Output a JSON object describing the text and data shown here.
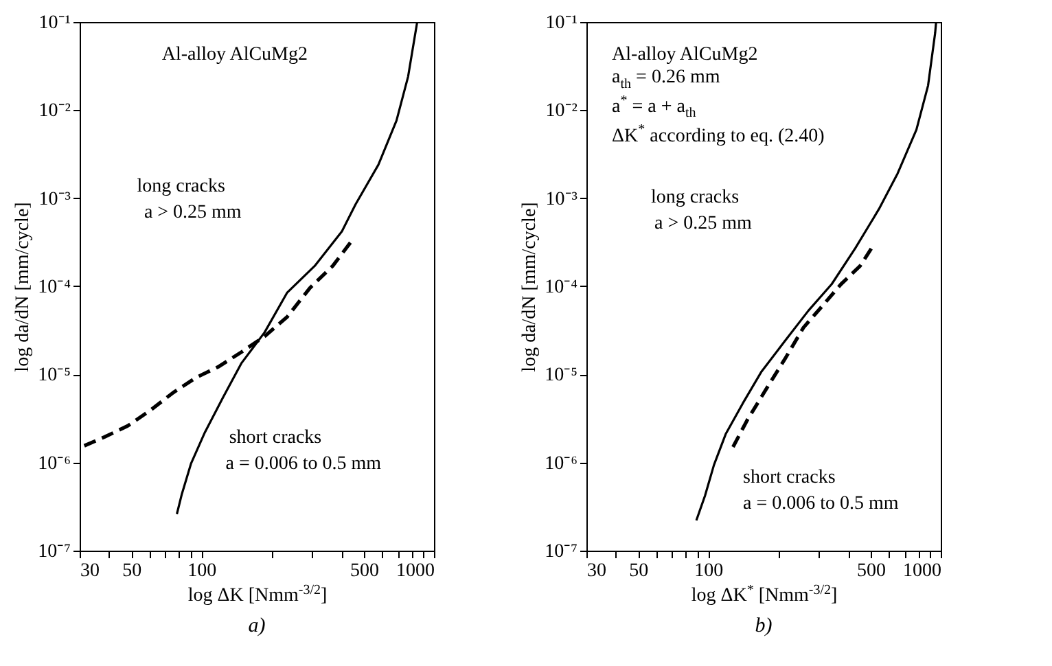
{
  "chart_data": [
    {
      "type": "line",
      "title": "a)",
      "xlabel": "log ΔK [Nmm$^{-3/2}$]",
      "ylabel": "log da/dN [mm/cycle]",
      "log": "xy",
      "grid": false,
      "xlim": [
        30,
        1000
      ],
      "ylim": [
        1e-07,
        0.1
      ],
      "xticks": [
        30,
        {
          "value": 40,
          "label": null
        },
        50,
        {
          "value": 60,
          "label": null
        },
        {
          "value": 70,
          "label": null
        },
        {
          "value": 80,
          "label": null
        },
        {
          "value": 90,
          "label": null
        },
        100,
        {
          "value": 200,
          "label": null
        },
        {
          "value": 300,
          "label": null
        },
        {
          "value": 400,
          "label": null
        },
        500,
        {
          "value": 600,
          "label": null
        },
        {
          "value": 700,
          "label": null
        },
        {
          "value": 800,
          "label": null
        },
        {
          "value": 900,
          "label": null
        },
        1000
      ],
      "yticks": [
        {
          "value": 1e-07,
          "label": "10⁻⁷"
        },
        {
          "value": 1e-06,
          "label": "10⁻⁶"
        },
        {
          "value": 1e-05,
          "label": "10⁻⁵"
        },
        {
          "value": 0.0001,
          "label": "10⁻⁴"
        },
        {
          "value": 0.001,
          "label": "10⁻³"
        },
        {
          "value": 0.01,
          "label": "10⁻²"
        },
        {
          "value": 0.1,
          "label": "10⁻¹"
        }
      ],
      "series": [
        {
          "color": "#000000",
          "line_style": "solid",
          "x": [
            78.5,
            82.5,
            90.4,
            103.6,
            124,
            149,
            187,
            234,
            307,
            402,
            460,
            577,
            690,
            774,
            847
          ],
          "values": [
            2.6e-07,
            4.4e-07,
            9.8e-07,
            2.2e-06,
            5.5e-06,
            1.35e-05,
            3e-05,
            8.5e-05,
            0.00017,
            0.00042,
            0.00085,
            0.0024,
            0.0076,
            0.024,
            0.1
          ]
        },
        {
          "color": "#000000",
          "line_style": "dashed",
          "x": [
            31.4,
            38.4,
            48.2,
            60.3,
            75.6,
            94.9,
            119,
            149,
            187,
            234,
            293,
            367,
            440
          ],
          "values": [
            1.55e-06,
            1.95e-06,
            2.6e-06,
            3.9e-06,
            6.2e-06,
            9.2e-06,
            1.23e-05,
            1.8e-05,
            2.7e-05,
            4.5e-05,
            9.6e-05,
            0.00017,
            0.00032
          ]
        }
      ],
      "annotations": [
        "Al-alloy AlCuMg2",
        "long cracks",
        "a > 0.25 mm",
        "short cracks",
        "a = 0.006 to 0.5 mm"
      ]
    },
    {
      "type": "line",
      "title": "b)",
      "xlabel": "log ΔK$^{*}$ [Nmm$^{-3/2}$]",
      "ylabel": "log da/dN [mm/cycle]",
      "log": "xy",
      "grid": false,
      "xlim": [
        30,
        1000
      ],
      "ylim": [
        1e-07,
        0.1
      ],
      "xticks": [
        30,
        {
          "value": 40,
          "label": null
        },
        50,
        {
          "value": 60,
          "label": null
        },
        {
          "value": 70,
          "label": null
        },
        {
          "value": 80,
          "label": null
        },
        {
          "value": 90,
          "label": null
        },
        100,
        {
          "value": 200,
          "label": null
        },
        {
          "value": 300,
          "label": null
        },
        {
          "value": 400,
          "label": null
        },
        500,
        {
          "value": 600,
          "label": null
        },
        {
          "value": 700,
          "label": null
        },
        {
          "value": 800,
          "label": null
        },
        {
          "value": 900,
          "label": null
        },
        1000
      ],
      "yticks": [
        {
          "value": 1e-07,
          "label": "10⁻⁷"
        },
        {
          "value": 1e-06,
          "label": "10⁻⁶"
        },
        {
          "value": 1e-05,
          "label": "10⁻⁵"
        },
        {
          "value": 0.0001,
          "label": "10⁻⁴"
        },
        {
          "value": 0.001,
          "label": "10⁻³"
        },
        {
          "value": 0.01,
          "label": "10⁻²"
        },
        {
          "value": 0.1,
          "label": "10⁻¹"
        }
      ],
      "series": [
        {
          "color": "#000000",
          "line_style": "solid",
          "x": [
            89,
            97,
            106,
            119,
            141,
            169,
            214,
            270,
            340,
            429,
            542,
            652,
            786,
            882,
            946,
            955
          ],
          "values": [
            2.2e-07,
            4.2e-07,
            9.4e-07,
            2.1e-06,
            4.7e-06,
            1.06e-05,
            2.4e-05,
            5.3e-05,
            0.000106,
            0.00027,
            0.00075,
            0.0019,
            0.006,
            0.019,
            0.075,
            0.1
          ]
        },
        {
          "color": "#000000",
          "line_style": "dashed",
          "x": [
            128,
            147,
            177,
            214,
            257,
            310,
            373,
            450,
            517
          ],
          "values": [
            1.5e-06,
            3e-06,
            6.7e-06,
            1.5e-05,
            3.4e-05,
            6e-05,
            0.000106,
            0.00017,
            0.0003
          ]
        }
      ],
      "annotations": [
        "Al-alloy AlCuMg2",
        "a$_{th}$ = 0.26 mm",
        "a$^{*}$ = a + a$_{th}$",
        "ΔK$^{*}$ according to eq. (2.40)",
        "long cracks",
        "a > 0.25 mm",
        "short cracks",
        "a = 0.006 to 0.5 mm"
      ]
    }
  ]
}
